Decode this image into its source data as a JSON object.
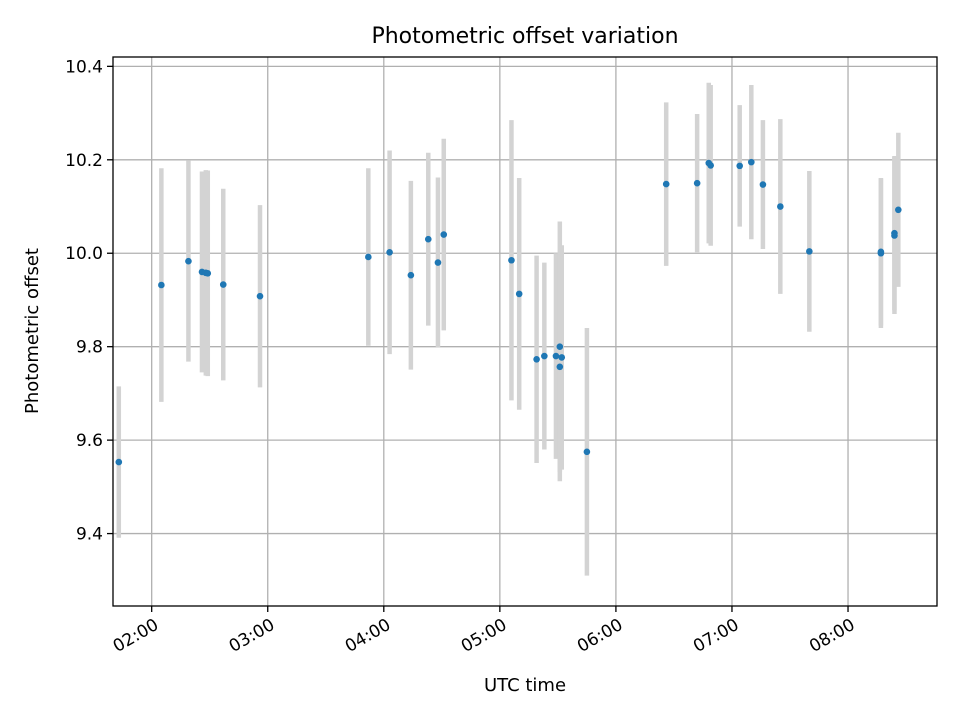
{
  "chart_data": {
    "type": "scatter",
    "title": "Photometric offset variation",
    "xlabel": "UTC time",
    "ylabel": "Photometric offset",
    "x_unit": "hours UTC",
    "xlim": [
      "01:40",
      "08:46"
    ],
    "ylim": [
      9.245,
      10.42
    ],
    "x_ticks": [
      "02:00",
      "03:00",
      "04:00",
      "05:00",
      "06:00",
      "07:00",
      "08:00"
    ],
    "y_ticks": [
      "9.4",
      "9.6",
      "9.8",
      "10.0",
      "10.2",
      "10.4"
    ],
    "grid": true,
    "colors": {
      "point": "#1f77b4",
      "errorbar": "#d3d3d3",
      "grid": "#b0b0b0"
    },
    "points": [
      {
        "time": "01:43",
        "y": 9.553,
        "err": 0.162
      },
      {
        "time": "02:05",
        "y": 9.932,
        "err": 0.25
      },
      {
        "time": "02:19",
        "y": 9.983,
        "err": 0.215
      },
      {
        "time": "02:26",
        "y": 9.96,
        "err": 0.215
      },
      {
        "time": "02:28",
        "y": 9.958,
        "err": 0.22
      },
      {
        "time": "02:29",
        "y": 9.957,
        "err": 0.22
      },
      {
        "time": "02:37",
        "y": 9.933,
        "err": 0.205
      },
      {
        "time": "02:56",
        "y": 9.908,
        "err": 0.195
      },
      {
        "time": "03:52",
        "y": 9.992,
        "err": 0.19
      },
      {
        "time": "04:03",
        "y": 10.002,
        "err": 0.218
      },
      {
        "time": "04:14",
        "y": 9.953,
        "err": 0.202
      },
      {
        "time": "04:23",
        "y": 10.03,
        "err": 0.185
      },
      {
        "time": "04:28",
        "y": 9.98,
        "err": 0.182
      },
      {
        "time": "04:31",
        "y": 10.04,
        "err": 0.205
      },
      {
        "time": "05:06",
        "y": 9.985,
        "err": 0.3
      },
      {
        "time": "05:10",
        "y": 9.913,
        "err": 0.248
      },
      {
        "time": "05:19",
        "y": 9.773,
        "err": 0.222
      },
      {
        "time": "05:23",
        "y": 9.78,
        "err": 0.2
      },
      {
        "time": "05:29",
        "y": 9.78,
        "err": 0.22
      },
      {
        "time": "05:31",
        "y": 9.8,
        "err": 0.268
      },
      {
        "time": "05:31",
        "y": 9.757,
        "err": 0.245
      },
      {
        "time": "05:32",
        "y": 9.777,
        "err": 0.24
      },
      {
        "time": "05:45",
        "y": 9.575,
        "err": 0.265
      },
      {
        "time": "06:26",
        "y": 10.148,
        "err": 0.175
      },
      {
        "time": "06:42",
        "y": 10.15,
        "err": 0.148
      },
      {
        "time": "06:48",
        "y": 10.193,
        "err": 0.172
      },
      {
        "time": "06:49",
        "y": 10.188,
        "err": 0.172
      },
      {
        "time": "07:04",
        "y": 10.187,
        "err": 0.13
      },
      {
        "time": "07:10",
        "y": 10.195,
        "err": 0.165
      },
      {
        "time": "07:16",
        "y": 10.147,
        "err": 0.138
      },
      {
        "time": "07:25",
        "y": 10.1,
        "err": 0.187
      },
      {
        "time": "07:40",
        "y": 10.004,
        "err": 0.172
      },
      {
        "time": "08:17",
        "y": 10.0,
        "err": 0.16
      },
      {
        "time": "08:17",
        "y": 10.003,
        "err": 0.158
      },
      {
        "time": "08:24",
        "y": 10.043,
        "err": 0.165
      },
      {
        "time": "08:24",
        "y": 10.038,
        "err": 0.168
      },
      {
        "time": "08:26",
        "y": 10.093,
        "err": 0.165
      }
    ]
  }
}
